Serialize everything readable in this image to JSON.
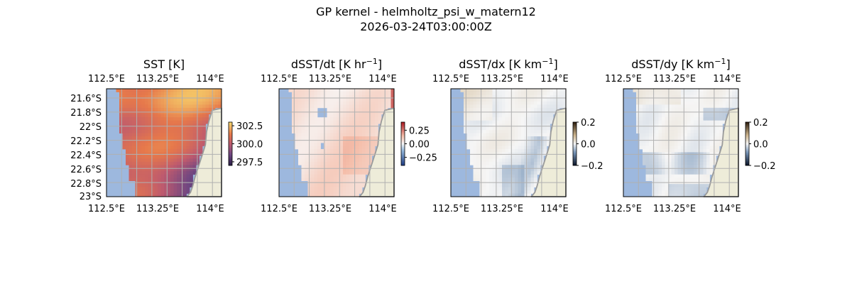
{
  "figure": {
    "title_line1": "GP kernel - helmholtz_psi_w_matern12",
    "title_line2": "2026-03-24T03:00:00Z"
  },
  "colors": {
    "ocean": "#9db8de",
    "land": "#eeecd9",
    "coast": "#9a9a9a",
    "grid": "#b0b0b0"
  },
  "chart_data": [
    {
      "type": "heatmap",
      "title": "SST [K]",
      "title_sup": "",
      "title_after": "",
      "colormap": "plasma-light",
      "x_ticks": [
        "112.5°E",
        "113.25°E",
        "114°E"
      ],
      "y_ticks": [
        "21.6°S",
        "21.8°S",
        "22°S",
        "22.2°S",
        "22.4°S",
        "22.6°S",
        "22.8°S",
        "23°S"
      ],
      "show_y_ticks": true,
      "xlim": [
        112.5,
        114.25
      ],
      "ylim": [
        -23.0,
        -21.45
      ],
      "colorbar": {
        "min": 297.0,
        "max": 303.0,
        "ticks": [
          297.5,
          300.0,
          302.5
        ],
        "tick_labels": [
          "297.5",
          "300.0",
          "302.5"
        ]
      },
      "value_range": [
        297.8,
        302.7
      ]
    },
    {
      "type": "heatmap",
      "title": "dSST/dt [K hr",
      "title_sup": "−1",
      "title_after": "]",
      "colormap": "blue-white-red",
      "x_ticks": [
        "112.5°E",
        "113.25°E",
        "114°E"
      ],
      "y_ticks": [],
      "show_y_ticks": false,
      "xlim": [
        112.5,
        114.25
      ],
      "ylim": [
        -23.0,
        -21.45
      ],
      "colorbar": {
        "min": -0.4,
        "max": 0.4,
        "ticks": [
          0.25,
          0.0,
          -0.25
        ],
        "tick_labels": [
          "0.25",
          "0.00",
          "−0.25"
        ]
      },
      "value_range": [
        -0.05,
        0.15
      ]
    },
    {
      "type": "heatmap",
      "title": "dSST/dx [K km",
      "title_sup": "−1",
      "title_after": "]",
      "colormap": "blue-white-brown",
      "x_ticks": [
        "112.5°E",
        "113.25°E",
        "114°E"
      ],
      "y_ticks": [],
      "show_y_ticks": false,
      "xlim": [
        112.5,
        114.25
      ],
      "ylim": [
        -23.0,
        -21.45
      ],
      "colorbar": {
        "min": -0.2,
        "max": 0.2,
        "ticks": [
          0.2,
          0.0,
          -0.2
        ],
        "tick_labels": [
          "0.2",
          "0.0",
          "−0.2"
        ]
      },
      "value_range": [
        -0.06,
        0.04
      ]
    },
    {
      "type": "heatmap",
      "title": "dSST/dy [K km",
      "title_sup": "−1",
      "title_after": "]",
      "colormap": "blue-white-brown",
      "x_ticks": [
        "112.5°E",
        "113.25°E",
        "114°E"
      ],
      "y_ticks": [],
      "show_y_ticks": false,
      "xlim": [
        112.5,
        114.25
      ],
      "ylim": [
        -23.0,
        -21.45
      ],
      "colorbar": {
        "min": -0.2,
        "max": 0.2,
        "ticks": [
          0.2,
          0.0,
          -0.2
        ],
        "tick_labels": [
          "0.2",
          "0.0",
          "−0.2"
        ]
      },
      "value_range": [
        -0.07,
        0.04
      ]
    }
  ]
}
